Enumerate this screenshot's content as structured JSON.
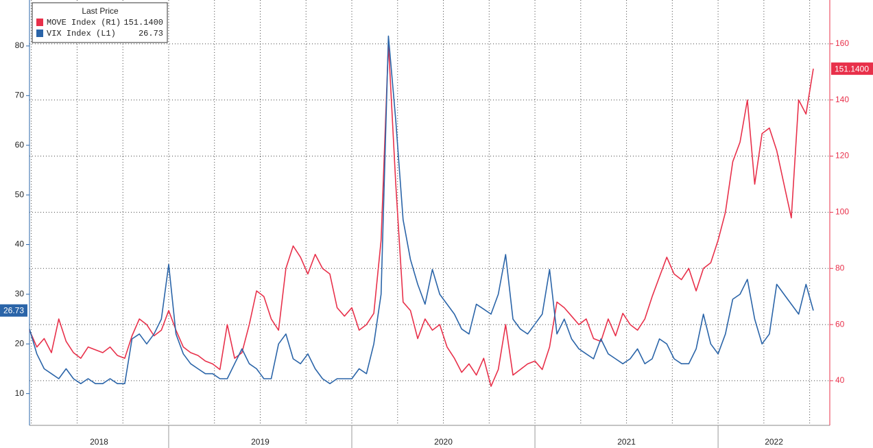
{
  "chart_data": {
    "type": "line",
    "legend_title": "Last Price",
    "x": [
      2018.24,
      2018.28,
      2018.32,
      2018.36,
      2018.4,
      2018.44,
      2018.48,
      2018.52,
      2018.56,
      2018.6,
      2018.64,
      2018.68,
      2018.72,
      2018.76,
      2018.8,
      2018.84,
      2018.88,
      2018.92,
      2018.96,
      2019.0,
      2019.04,
      2019.08,
      2019.12,
      2019.16,
      2019.2,
      2019.24,
      2019.28,
      2019.32,
      2019.36,
      2019.4,
      2019.44,
      2019.48,
      2019.52,
      2019.56,
      2019.6,
      2019.64,
      2019.68,
      2019.72,
      2019.76,
      2019.8,
      2019.84,
      2019.88,
      2019.92,
      2019.96,
      2020.0,
      2020.04,
      2020.08,
      2020.12,
      2020.16,
      2020.2,
      2020.24,
      2020.28,
      2020.32,
      2020.36,
      2020.4,
      2020.44,
      2020.48,
      2020.52,
      2020.56,
      2020.6,
      2020.64,
      2020.68,
      2020.72,
      2020.76,
      2020.8,
      2020.84,
      2020.88,
      2020.92,
      2020.96,
      2021.0,
      2021.04,
      2021.08,
      2021.12,
      2021.16,
      2021.2,
      2021.24,
      2021.28,
      2021.32,
      2021.36,
      2021.4,
      2021.44,
      2021.48,
      2021.52,
      2021.56,
      2021.6,
      2021.64,
      2021.68,
      2021.72,
      2021.76,
      2021.8,
      2021.84,
      2021.88,
      2021.92,
      2021.96,
      2022.0,
      2022.04,
      2022.08,
      2022.12,
      2022.16,
      2022.2,
      2022.24,
      2022.28,
      2022.32,
      2022.36,
      2022.4,
      2022.44,
      2022.48,
      2022.52
    ],
    "series": [
      {
        "name": "MOVE Index  (R1)",
        "color": "#e8304a",
        "axis": "y2",
        "last_label": "151.1400",
        "values": [
          58,
          52,
          55,
          50,
          62,
          54,
          50,
          48,
          52,
          51,
          50,
          52,
          49,
          48,
          56,
          62,
          60,
          56,
          58,
          65,
          58,
          52,
          50,
          49,
          47,
          46,
          44,
          60,
          48,
          50,
          60,
          72,
          70,
          62,
          58,
          80,
          88,
          84,
          78,
          85,
          80,
          78,
          66,
          63,
          66,
          58,
          60,
          64,
          90,
          160,
          110,
          68,
          65,
          55,
          62,
          58,
          60,
          52,
          48,
          43,
          46,
          42,
          48,
          38,
          44,
          60,
          42,
          44,
          46,
          47,
          44,
          52,
          68,
          66,
          63,
          60,
          62,
          55,
          54,
          62,
          56,
          64,
          60,
          58,
          62,
          70,
          77,
          84,
          78,
          76,
          80,
          72,
          80,
          82,
          90,
          100,
          118,
          125,
          140,
          110,
          128,
          130,
          122,
          110,
          98,
          140,
          135,
          151.14
        ]
      },
      {
        "name": "VIX Index  (L1)",
        "color": "#2a64a8",
        "axis": "y",
        "values": [
          23,
          18,
          15,
          14,
          13,
          15,
          13,
          12,
          13,
          12,
          12,
          13,
          12,
          12,
          21,
          22,
          20,
          22,
          25,
          36,
          22,
          18,
          16,
          15,
          14,
          14,
          13,
          13,
          16,
          19,
          16,
          15,
          13,
          13,
          20,
          22,
          17,
          16,
          18,
          15,
          13,
          12,
          13,
          13,
          13,
          15,
          14,
          20,
          30,
          82,
          65,
          45,
          37,
          32,
          28,
          35,
          30,
          28,
          26,
          23,
          22,
          28,
          27,
          26,
          30,
          38,
          25,
          23,
          22,
          24,
          26,
          35,
          22,
          25,
          21,
          19,
          18,
          17,
          21,
          18,
          17,
          16,
          17,
          19,
          16,
          17,
          21,
          20,
          17,
          16,
          16,
          19,
          26,
          20,
          18,
          22,
          29,
          30,
          33,
          25,
          20,
          22,
          32,
          30,
          28,
          26,
          32,
          26.73
        ]
      }
    ],
    "xlim": [
      2018.24,
      2022.61
    ],
    "xticks": [
      2018.25,
      2018.5,
      2018.75,
      2019,
      2019.25,
      2019.5,
      2019.75,
      2020,
      2020.25,
      2020.5,
      2020.75,
      2021,
      2021.25,
      2021.5,
      2021.75,
      2022,
      2022.25,
      2022.5
    ],
    "xlabels": [
      2018,
      2019,
      2020,
      2021,
      2022
    ],
    "ylim": [
      3.6,
      89.25
    ],
    "yticks": [
      10,
      20,
      30,
      40,
      50,
      60,
      70,
      80
    ],
    "y2lim": [
      24.1,
      175.6
    ],
    "y2ticks": [
      40,
      60,
      80,
      100,
      120,
      140,
      160
    ],
    "grid": true
  }
}
